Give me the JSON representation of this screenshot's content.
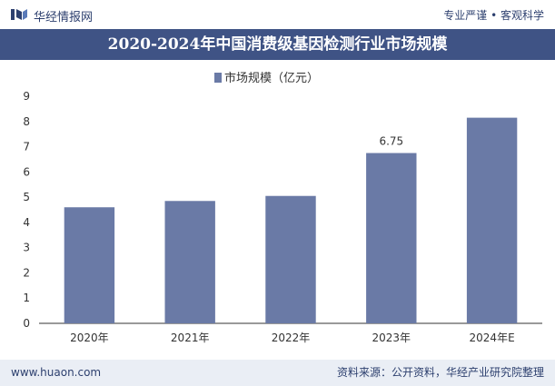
{
  "header": {
    "brand": "华经情报网",
    "tagline": "专业严谨 • 客观科学",
    "title": "2020-2024年中国消费级基因检测行业市场规模"
  },
  "colors": {
    "bar": "#6a7aa6",
    "title_bg": "#3f5385",
    "footer_bg": "#eaeef5"
  },
  "chart_data": {
    "type": "bar",
    "categories": [
      "2020年",
      "2021年",
      "2022年",
      "2023年",
      "2024年E"
    ],
    "series": [
      {
        "name": "市场规模（亿元）",
        "values": [
          4.6,
          4.85,
          5.05,
          6.75,
          8.15
        ]
      }
    ],
    "data_labels": [
      null,
      null,
      null,
      "6.75",
      null
    ],
    "ylim": [
      0,
      9
    ],
    "yticks": [
      "0",
      "1",
      "2",
      "3",
      "4",
      "5",
      "6",
      "7",
      "8",
      "9"
    ],
    "legend_position": "top-center",
    "grid": false
  },
  "footer": {
    "website": "www.huaon.com",
    "source": "资料来源：公开资料，华经产业研究院整理"
  }
}
